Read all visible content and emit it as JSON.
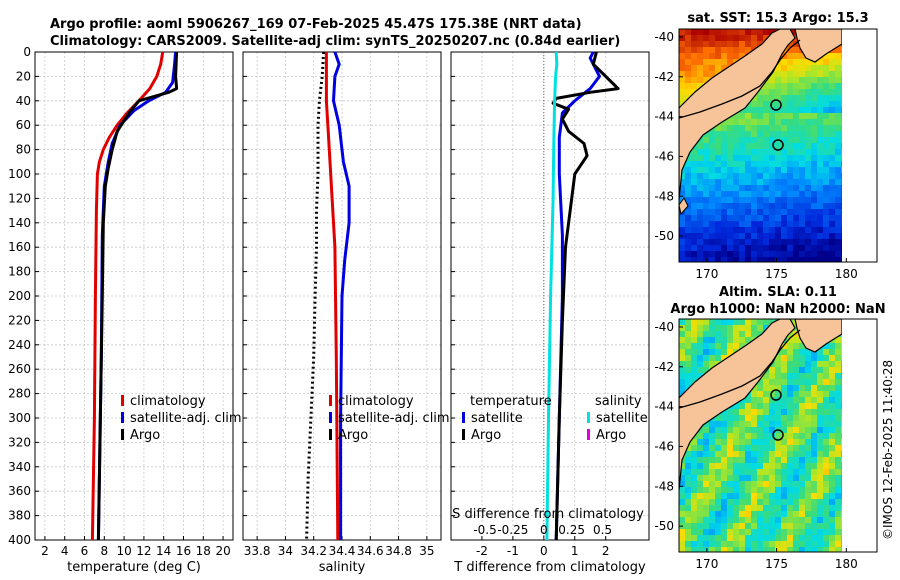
{
  "figure": {
    "title_line1": "Argo profile: aoml 5906267_169 07-Feb-2025 45.47S 175.38E (NRT data)",
    "title_line2": "Climatology: CARS2009. Satellite-adj clim: synTS_20250207.nc (0.84d earlier)",
    "watermark": "©IMOS 12-Feb-2025 11:40:28",
    "colors": {
      "climatology": "#e00000",
      "satellite": "#0000e0",
      "argo": "#000000",
      "sal_sat": "#00e0e0",
      "sal_argo": "#e000e0",
      "land": "#f7c49a"
    }
  },
  "chart_data": [
    {
      "id": "temperature",
      "type": "line",
      "xlabel": "temperature (deg C)",
      "ylabel": "",
      "xlim": [
        1,
        21
      ],
      "ylim": [
        400,
        0
      ],
      "xticks": [
        2,
        4,
        6,
        8,
        10,
        12,
        14,
        16,
        18,
        20
      ],
      "yticks": [
        0,
        20,
        40,
        60,
        80,
        100,
        120,
        140,
        160,
        180,
        200,
        220,
        240,
        260,
        280,
        300,
        320,
        340,
        360,
        380,
        400
      ],
      "legend": [
        "climatology",
        "satellite-adj. clim",
        "Argo"
      ],
      "series": [
        {
          "name": "climatology",
          "color": "#e00000",
          "points": [
            [
              13.9,
              0
            ],
            [
              13.7,
              10
            ],
            [
              13.3,
              20
            ],
            [
              12.6,
              30
            ],
            [
              11.5,
              40
            ],
            [
              10.3,
              50
            ],
            [
              9.3,
              60
            ],
            [
              8.5,
              70
            ],
            [
              7.9,
              80
            ],
            [
              7.5,
              90
            ],
            [
              7.3,
              100
            ],
            [
              7.2,
              130
            ],
            [
              7.1,
              200
            ],
            [
              7.0,
              300
            ],
            [
              6.8,
              400
            ]
          ]
        },
        {
          "name": "satellite-adj. clim",
          "color": "#0000e0",
          "points": [
            [
              15.2,
              0
            ],
            [
              15.1,
              10
            ],
            [
              14.9,
              25
            ],
            [
              14.2,
              33
            ],
            [
              12.5,
              40
            ],
            [
              11.0,
              48
            ],
            [
              9.6,
              60
            ],
            [
              8.8,
              75
            ],
            [
              8.4,
              90
            ],
            [
              8.0,
              110
            ],
            [
              7.8,
              150
            ],
            [
              7.7,
              250
            ],
            [
              7.5,
              350
            ],
            [
              7.4,
              400
            ]
          ]
        },
        {
          "name": "Argo",
          "color": "#000000",
          "points": [
            [
              15.3,
              0
            ],
            [
              15.2,
              20
            ],
            [
              15.3,
              30
            ],
            [
              14.5,
              33
            ],
            [
              11.5,
              40
            ],
            [
              10.5,
              50
            ],
            [
              9.3,
              65
            ],
            [
              8.8,
              80
            ],
            [
              8.4,
              95
            ],
            [
              8.1,
              110
            ],
            [
              7.9,
              140
            ],
            [
              7.8,
              200
            ],
            [
              7.6,
              300
            ],
            [
              7.4,
              400
            ]
          ]
        }
      ]
    },
    {
      "id": "salinity",
      "type": "line",
      "xlabel": "salinity",
      "ylabel": "",
      "xlim": [
        33.7,
        35.1
      ],
      "ylim": [
        400,
        0
      ],
      "xticks": [
        33.8,
        34.0,
        34.2,
        34.4,
        34.6,
        34.8,
        35.0
      ],
      "xticklabels": [
        "33.8",
        "34",
        "34.2",
        "34.4",
        "34.6",
        "34.8",
        "35"
      ],
      "legend": [
        "climatology",
        "satellite-adj. clim",
        "Argo"
      ],
      "series": [
        {
          "name": "climatology",
          "color": "#e00000",
          "points": [
            [
              34.29,
              0
            ],
            [
              34.29,
              20
            ],
            [
              34.29,
              40
            ],
            [
              34.31,
              80
            ],
            [
              34.33,
              120
            ],
            [
              34.35,
              160
            ],
            [
              34.36,
              250
            ],
            [
              34.37,
              400
            ]
          ]
        },
        {
          "name": "satellite-adj. clim",
          "color": "#0000e0",
          "points": [
            [
              34.35,
              0
            ],
            [
              34.38,
              10
            ],
            [
              34.35,
              20
            ],
            [
              34.34,
              40
            ],
            [
              34.38,
              60
            ],
            [
              34.41,
              90
            ],
            [
              34.45,
              110
            ],
            [
              34.45,
              140
            ],
            [
              34.42,
              170
            ],
            [
              34.4,
              200
            ],
            [
              34.39,
              300
            ],
            [
              34.39,
              400
            ]
          ]
        },
        {
          "name": "Argo",
          "color": "#000000",
          "dashed": true,
          "points": [
            [
              34.27,
              0
            ],
            [
              34.26,
              20
            ],
            [
              34.24,
              40
            ],
            [
              34.23,
              60
            ],
            [
              34.23,
              80
            ],
            [
              34.23,
              100
            ],
            [
              34.22,
              130
            ],
            [
              34.22,
              160
            ],
            [
              34.21,
              200
            ],
            [
              34.2,
              250
            ],
            [
              34.18,
              300
            ],
            [
              34.16,
              350
            ],
            [
              34.15,
              400
            ]
          ]
        }
      ]
    },
    {
      "id": "difference",
      "type": "line",
      "xlabel": "T difference from climatology",
      "xlabel_top": "S difference from climatology",
      "xlim": [
        -3,
        3.4
      ],
      "ylim": [
        400,
        0
      ],
      "xticks": [
        -2,
        -1,
        0,
        1,
        2
      ],
      "xticks_top": [
        {
          "pos": -1.9,
          "label": "-0.5"
        },
        {
          "pos": -1,
          "label": "-0.25"
        },
        {
          "pos": 0,
          "label": "0"
        },
        {
          "pos": 0.9,
          "label": "0.25"
        },
        {
          "pos": 1.9,
          "label": "0.5"
        }
      ],
      "legend_left_title": "temperature",
      "legend_right_title": "salinity",
      "legend_left": [
        "satellite",
        "Argo"
      ],
      "legend_right": [
        "satellite",
        "Argo"
      ],
      "series": [
        {
          "name": "T satellite",
          "color": "#0000e0",
          "points": [
            [
              1.6,
              0
            ],
            [
              1.5,
              5
            ],
            [
              1.6,
              10
            ],
            [
              1.8,
              20
            ],
            [
              1.5,
              30
            ],
            [
              1.0,
              40
            ],
            [
              0.6,
              50
            ],
            [
              0.5,
              70
            ],
            [
              0.5,
              100
            ],
            [
              0.6,
              150
            ],
            [
              0.6,
              200
            ],
            [
              0.5,
              300
            ],
            [
              0.4,
              400
            ]
          ]
        },
        {
          "name": "T Argo",
          "color": "#000000",
          "points": [
            [
              1.7,
              0
            ],
            [
              1.6,
              10
            ],
            [
              2.2,
              25
            ],
            [
              2.4,
              30
            ],
            [
              1.5,
              33
            ],
            [
              0.4,
              38
            ],
            [
              0.3,
              42
            ],
            [
              0.8,
              47
            ],
            [
              0.6,
              55
            ],
            [
              0.8,
              65
            ],
            [
              1.3,
              75
            ],
            [
              1.4,
              85
            ],
            [
              1.0,
              100
            ],
            [
              0.9,
              120
            ],
            [
              0.7,
              160
            ],
            [
              0.6,
              220
            ],
            [
              0.5,
              300
            ],
            [
              0.4,
              400
            ]
          ]
        },
        {
          "name": "S satellite",
          "color": "#00e0e0",
          "points": [
            [
              0.4,
              0
            ],
            [
              0.42,
              10
            ],
            [
              0.38,
              20
            ],
            [
              0.35,
              40
            ],
            [
              0.32,
              80
            ],
            [
              0.3,
              120
            ],
            [
              0.22,
              200
            ],
            [
              0.15,
              300
            ],
            [
              0.1,
              400
            ]
          ]
        },
        {
          "name": "S Argo",
          "color": "#e000e0",
          "points": []
        }
      ]
    },
    {
      "id": "sst_map",
      "type": "heatmap",
      "title": "sat. SST: 15.3 Argo: 15.3",
      "xticks": [
        170,
        175,
        180
      ],
      "yticks": [
        -40,
        -42,
        -44,
        -46,
        -48,
        -50
      ],
      "xlim": [
        168,
        182.2
      ],
      "ylim": [
        -51.3,
        -39.6
      ],
      "profile_marker": [
        175.38,
        -45.47
      ]
    },
    {
      "id": "sla_map",
      "type": "heatmap",
      "title_line1": "Altim. SLA: 0.11",
      "title_line2": "Argo h1000: NaN h2000: NaN",
      "xticks": [
        170,
        175,
        180
      ],
      "yticks": [
        -40,
        -42,
        -44,
        -46,
        -48,
        -50
      ],
      "xlim": [
        168,
        182.2
      ],
      "ylim": [
        -51.3,
        -39.6
      ],
      "profile_marker": [
        175.38,
        -45.47
      ]
    }
  ]
}
